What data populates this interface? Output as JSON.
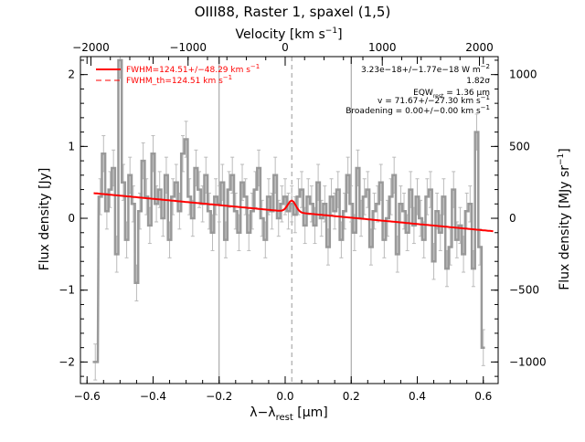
{
  "chart_data": {
    "type": "line",
    "title": "OIII88, Raster 1, spaxel (1,5)",
    "xlabel_bottom": "λ−λ",
    "xlabel_bottom_sub": "rest",
    "xlabel_bottom_unit": "[μm]",
    "xlabel_top": "Velocity [km s",
    "xlabel_top_exp": "−1",
    "xlabel_top_close": "]",
    "ylabel_left": "Flux density [Jy]",
    "ylabel_right": "Flux density [MJy sr",
    "ylabel_right_exp": "−1",
    "ylabel_right_close": "]",
    "xlim": [
      -0.62,
      0.645
    ],
    "ylim": [
      -2.3,
      2.25
    ],
    "xticks": [
      -0.6,
      -0.4,
      -0.2,
      0.0,
      0.2,
      0.4,
      0.6
    ],
    "xtick_labels": [
      "−0.6",
      "−0.4",
      "−0.2",
      "0.0",
      "0.2",
      "0.4",
      "0.6"
    ],
    "yticks": [
      -2,
      -1,
      0,
      1,
      2
    ],
    "ytick_labels": [
      "−2",
      "−1",
      "0",
      "1",
      "2"
    ],
    "top_axis_velocity_per_um": 3400,
    "top_ticks": [
      -2000,
      -1000,
      0,
      1000,
      2000
    ],
    "top_tick_labels": [
      "−2000",
      "−1000",
      "0",
      "1000",
      "2000"
    ],
    "right_axis_mjy_per_jy": 500,
    "right_ticks": [
      -1000,
      -500,
      0,
      500,
      1000
    ],
    "right_tick_labels": [
      "−1000",
      "−500",
      "0",
      "500",
      "1000"
    ],
    "vertical_lines_solid": [
      -0.2,
      0.2
    ],
    "vertical_line_dashed": 0.02,
    "spectrum_x": [
      -0.575,
      -0.56,
      -0.55,
      -0.54,
      -0.53,
      -0.52,
      -0.51,
      -0.5,
      -0.49,
      -0.48,
      -0.47,
      -0.46,
      -0.45,
      -0.44,
      -0.43,
      -0.42,
      -0.41,
      -0.4,
      -0.39,
      -0.38,
      -0.37,
      -0.36,
      -0.35,
      -0.34,
      -0.33,
      -0.32,
      -0.31,
      -0.3,
      -0.29,
      -0.28,
      -0.27,
      -0.26,
      -0.25,
      -0.24,
      -0.23,
      -0.22,
      -0.21,
      -0.2,
      -0.19,
      -0.18,
      -0.17,
      -0.16,
      -0.15,
      -0.14,
      -0.13,
      -0.12,
      -0.11,
      -0.1,
      -0.09,
      -0.08,
      -0.07,
      -0.06,
      -0.05,
      -0.04,
      -0.03,
      -0.02,
      -0.01,
      0.0,
      0.01,
      0.02,
      0.03,
      0.04,
      0.05,
      0.06,
      0.07,
      0.08,
      0.09,
      0.1,
      0.11,
      0.12,
      0.13,
      0.14,
      0.15,
      0.16,
      0.17,
      0.18,
      0.19,
      0.2,
      0.21,
      0.22,
      0.23,
      0.24,
      0.25,
      0.26,
      0.27,
      0.28,
      0.29,
      0.3,
      0.31,
      0.32,
      0.33,
      0.34,
      0.35,
      0.36,
      0.37,
      0.38,
      0.39,
      0.4,
      0.41,
      0.42,
      0.43,
      0.44,
      0.45,
      0.46,
      0.47,
      0.48,
      0.49,
      0.5,
      0.51,
      0.52,
      0.53,
      0.54,
      0.55,
      0.56,
      0.57,
      0.58,
      0.59,
      0.6
    ],
    "spectrum_y": [
      -2.0,
      0.3,
      0.9,
      0.1,
      0.4,
      0.7,
      -0.5,
      2.2,
      0.5,
      -0.3,
      0.6,
      0.2,
      -0.9,
      0.1,
      0.8,
      0.3,
      -0.1,
      0.9,
      0.2,
      0.4,
      0.0,
      0.6,
      -0.3,
      0.3,
      0.5,
      0.1,
      0.9,
      1.1,
      0.3,
      0.0,
      0.7,
      0.4,
      0.2,
      0.6,
      0.1,
      -0.2,
      0.3,
      0.2,
      0.5,
      -0.3,
      0.4,
      0.6,
      0.1,
      -0.2,
      0.5,
      0.3,
      -0.2,
      0.1,
      0.4,
      0.7,
      0.0,
      -0.3,
      0.3,
      0.1,
      0.6,
      0.0,
      0.2,
      0.3,
      0.1,
      0.2,
      0.05,
      0.3,
      0.4,
      -0.1,
      0.3,
      0.2,
      -0.1,
      0.5,
      0.0,
      0.2,
      -0.4,
      0.3,
      0.1,
      0.4,
      -0.3,
      0.1,
      0.6,
      0.2,
      -0.2,
      0.7,
      0.0,
      0.3,
      0.4,
      -0.4,
      0.1,
      0.2,
      0.5,
      -0.3,
      0.0,
      0.3,
      0.6,
      -0.5,
      0.2,
      0.1,
      -0.2,
      0.4,
      -0.1,
      0.3,
      0.0,
      -0.3,
      0.3,
      0.4,
      -0.6,
      0.1,
      -0.2,
      0.3,
      -0.7,
      -0.4,
      0.4,
      -0.3,
      -0.1,
      -0.5,
      0.1,
      0.2,
      -0.7,
      1.2,
      -0.4,
      -1.8
    ],
    "spectrum_err": [
      0.25,
      0.25,
      0.25,
      0.25,
      0.25,
      0.25,
      0.25,
      0.25,
      0.25,
      0.25,
      0.25,
      0.25,
      0.25,
      0.25,
      0.25,
      0.25,
      0.25,
      0.25,
      0.25,
      0.25,
      0.25,
      0.25,
      0.25,
      0.25,
      0.25,
      0.25,
      0.25,
      0.25,
      0.25,
      0.25,
      0.25,
      0.25,
      0.25,
      0.25,
      0.25,
      0.25,
      0.25,
      0.25,
      0.25,
      0.25,
      0.25,
      0.25,
      0.25,
      0.25,
      0.25,
      0.25,
      0.25,
      0.25,
      0.25,
      0.25,
      0.25,
      0.25,
      0.25,
      0.25,
      0.25,
      0.25,
      0.25,
      0.25,
      0.25,
      0.25,
      0.25,
      0.25,
      0.25,
      0.25,
      0.25,
      0.25,
      0.25,
      0.25,
      0.25,
      0.25,
      0.25,
      0.25,
      0.25,
      0.25,
      0.25,
      0.25,
      0.25,
      0.25,
      0.25,
      0.25,
      0.25,
      0.25,
      0.25,
      0.25,
      0.25,
      0.25,
      0.25,
      0.25,
      0.25,
      0.25,
      0.25,
      0.25,
      0.25,
      0.25,
      0.25,
      0.25,
      0.25,
      0.25,
      0.25,
      0.25,
      0.25,
      0.25,
      0.25,
      0.25,
      0.25,
      0.25,
      0.25,
      0.25,
      0.25,
      0.25,
      0.25,
      0.25,
      0.25,
      0.25,
      0.25,
      0.25,
      0.25,
      0.25
    ],
    "fit_continuum": {
      "x_start": -0.58,
      "y_start": 0.35,
      "x_end": 0.63,
      "y_end": -0.18
    },
    "fit_line": {
      "center": 0.02,
      "amplitude": 0.16,
      "sigma": 0.012
    },
    "colors": {
      "spectrum": "#999999",
      "fit": "#ff0000",
      "axes": "#000000",
      "vlines": "#999999"
    },
    "legend": [
      {
        "label": "FWHM=124.51+/−48.29 km s",
        "exp": "−1",
        "style": "solid"
      },
      {
        "label": "FWHM_th=124.51 km s",
        "exp": "−1",
        "style": "dashed"
      }
    ],
    "legend_placement": "top-left",
    "annotations": [
      {
        "text": "3.23e−18+/−1.77e−18 W m",
        "exp": "−2"
      },
      {
        "text": "1.82σ"
      },
      {
        "text": "EQW",
        "sub": "rest",
        "rest": " = 1.36 μm"
      },
      {
        "text": "v = 71.67+/−27.30 km s",
        "exp": "−1"
      },
      {
        "text": "Broadening = 0.00+/−0.00 km s",
        "exp": "−1"
      }
    ],
    "annotation_placement": "top-right",
    "grid": false
  }
}
